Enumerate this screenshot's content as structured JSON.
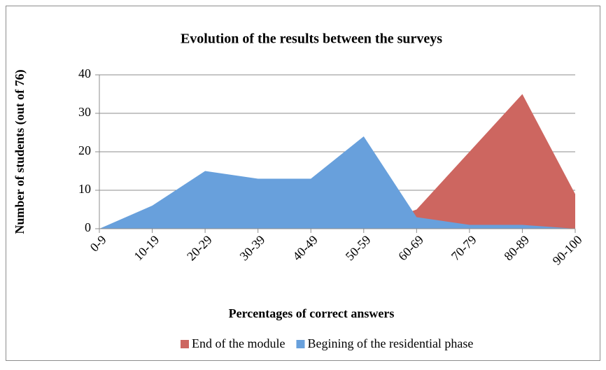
{
  "chart_data": {
    "type": "area",
    "title": "Evolution of the results between the surveys",
    "xlabel": "Percentages of correct answers",
    "ylabel": "Number of students (out of 76)",
    "categories": [
      "0-9",
      "10-19",
      "20-29",
      "30-39",
      "40-49",
      "50-59",
      "60-69",
      "70-79",
      "80-89",
      "90-100"
    ],
    "series": [
      {
        "name": "End of the module",
        "color": "#cd6660",
        "values": [
          0,
          0,
          0,
          0,
          0,
          0,
          5,
          20,
          35,
          9
        ]
      },
      {
        "name": "Begining of the residential phase",
        "color": "#68a0dc",
        "values": [
          0,
          6,
          15,
          13,
          13,
          24,
          3,
          1,
          1,
          0
        ]
      }
    ],
    "ylim": [
      0,
      40
    ],
    "yticks": [
      0,
      10,
      20,
      30,
      40
    ],
    "grid": true,
    "legend": "bottom"
  }
}
